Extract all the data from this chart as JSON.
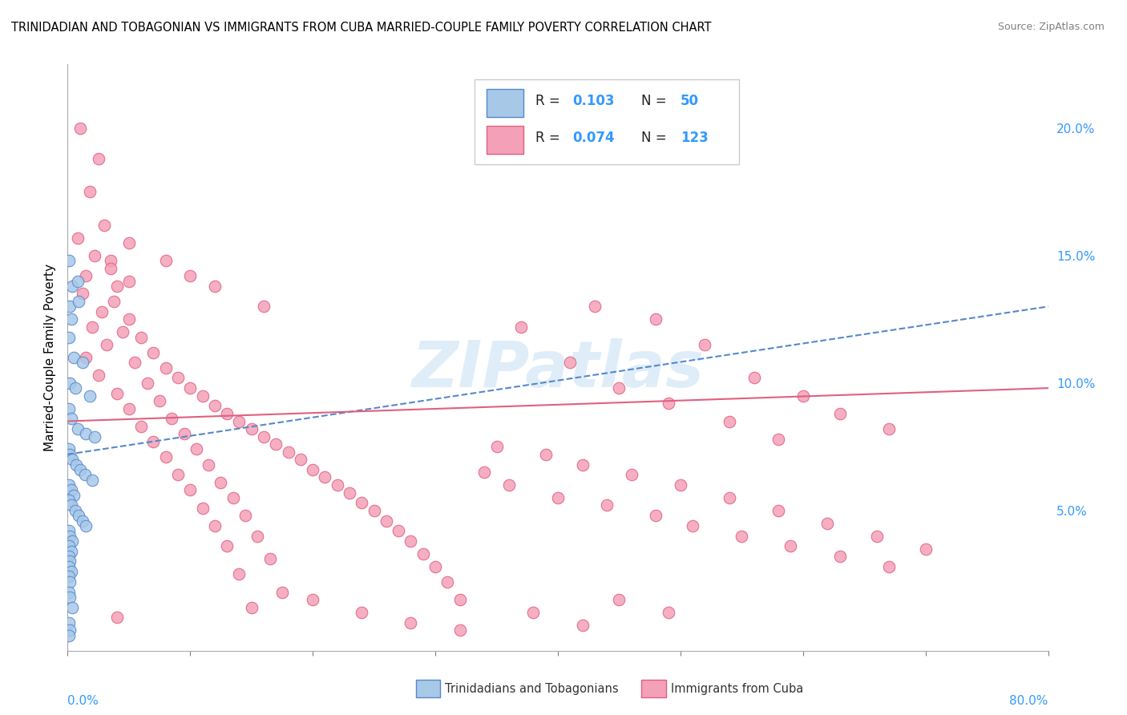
{
  "title": "TRINIDADIAN AND TOBAGONIAN VS IMMIGRANTS FROM CUBA MARRIED-COUPLE FAMILY POVERTY CORRELATION CHART",
  "source": "Source: ZipAtlas.com",
  "ylabel": "Married-Couple Family Poverty",
  "right_yticks": [
    "5.0%",
    "10.0%",
    "15.0%",
    "20.0%"
  ],
  "right_ytick_vals": [
    0.05,
    0.1,
    0.15,
    0.2
  ],
  "watermark": "ZIPatlas",
  "blue_color": "#a8c8e8",
  "pink_color": "#f4a0b8",
  "trend_blue_color": "#5588cc",
  "trend_pink_color": "#e06080",
  "blue_scatter": [
    [
      0.001,
      0.148
    ],
    [
      0.004,
      0.138
    ],
    [
      0.002,
      0.13
    ],
    [
      0.008,
      0.14
    ],
    [
      0.003,
      0.125
    ],
    [
      0.009,
      0.132
    ],
    [
      0.001,
      0.118
    ],
    [
      0.005,
      0.11
    ],
    [
      0.012,
      0.108
    ],
    [
      0.002,
      0.1
    ],
    [
      0.006,
      0.098
    ],
    [
      0.018,
      0.095
    ],
    [
      0.001,
      0.09
    ],
    [
      0.003,
      0.086
    ],
    [
      0.008,
      0.082
    ],
    [
      0.015,
      0.08
    ],
    [
      0.022,
      0.079
    ],
    [
      0.001,
      0.074
    ],
    [
      0.002,
      0.072
    ],
    [
      0.004,
      0.07
    ],
    [
      0.007,
      0.068
    ],
    [
      0.01,
      0.066
    ],
    [
      0.014,
      0.064
    ],
    [
      0.02,
      0.062
    ],
    [
      0.001,
      0.06
    ],
    [
      0.003,
      0.058
    ],
    [
      0.005,
      0.056
    ],
    [
      0.001,
      0.054
    ],
    [
      0.003,
      0.052
    ],
    [
      0.006,
      0.05
    ],
    [
      0.009,
      0.048
    ],
    [
      0.012,
      0.046
    ],
    [
      0.015,
      0.044
    ],
    [
      0.001,
      0.042
    ],
    [
      0.002,
      0.04
    ],
    [
      0.004,
      0.038
    ],
    [
      0.001,
      0.036
    ],
    [
      0.003,
      0.034
    ],
    [
      0.001,
      0.032
    ],
    [
      0.002,
      0.03
    ],
    [
      0.001,
      0.028
    ],
    [
      0.003,
      0.026
    ],
    [
      0.001,
      0.024
    ],
    [
      0.002,
      0.022
    ],
    [
      0.001,
      0.018
    ],
    [
      0.002,
      0.016
    ],
    [
      0.004,
      0.012
    ],
    [
      0.001,
      0.006
    ],
    [
      0.002,
      0.003
    ],
    [
      0.001,
      0.001
    ]
  ],
  "pink_scatter": [
    [
      0.01,
      0.2
    ],
    [
      0.025,
      0.188
    ],
    [
      0.018,
      0.175
    ],
    [
      0.03,
      0.162
    ],
    [
      0.008,
      0.157
    ],
    [
      0.022,
      0.15
    ],
    [
      0.035,
      0.148
    ],
    [
      0.015,
      0.142
    ],
    [
      0.04,
      0.138
    ],
    [
      0.012,
      0.135
    ],
    [
      0.038,
      0.132
    ],
    [
      0.028,
      0.128
    ],
    [
      0.05,
      0.125
    ],
    [
      0.02,
      0.122
    ],
    [
      0.045,
      0.12
    ],
    [
      0.06,
      0.118
    ],
    [
      0.032,
      0.115
    ],
    [
      0.07,
      0.112
    ],
    [
      0.015,
      0.11
    ],
    [
      0.055,
      0.108
    ],
    [
      0.08,
      0.106
    ],
    [
      0.025,
      0.103
    ],
    [
      0.09,
      0.102
    ],
    [
      0.065,
      0.1
    ],
    [
      0.1,
      0.098
    ],
    [
      0.04,
      0.096
    ],
    [
      0.11,
      0.095
    ],
    [
      0.075,
      0.093
    ],
    [
      0.12,
      0.091
    ],
    [
      0.05,
      0.09
    ],
    [
      0.13,
      0.088
    ],
    [
      0.085,
      0.086
    ],
    [
      0.14,
      0.085
    ],
    [
      0.06,
      0.083
    ],
    [
      0.15,
      0.082
    ],
    [
      0.095,
      0.08
    ],
    [
      0.16,
      0.079
    ],
    [
      0.07,
      0.077
    ],
    [
      0.17,
      0.076
    ],
    [
      0.105,
      0.074
    ],
    [
      0.18,
      0.073
    ],
    [
      0.08,
      0.071
    ],
    [
      0.19,
      0.07
    ],
    [
      0.115,
      0.068
    ],
    [
      0.2,
      0.066
    ],
    [
      0.09,
      0.064
    ],
    [
      0.21,
      0.063
    ],
    [
      0.125,
      0.061
    ],
    [
      0.22,
      0.06
    ],
    [
      0.1,
      0.058
    ],
    [
      0.23,
      0.057
    ],
    [
      0.135,
      0.055
    ],
    [
      0.24,
      0.053
    ],
    [
      0.11,
      0.051
    ],
    [
      0.25,
      0.05
    ],
    [
      0.145,
      0.048
    ],
    [
      0.26,
      0.046
    ],
    [
      0.12,
      0.044
    ],
    [
      0.27,
      0.042
    ],
    [
      0.155,
      0.04
    ],
    [
      0.28,
      0.038
    ],
    [
      0.13,
      0.036
    ],
    [
      0.29,
      0.033
    ],
    [
      0.165,
      0.031
    ],
    [
      0.3,
      0.028
    ],
    [
      0.14,
      0.025
    ],
    [
      0.31,
      0.022
    ],
    [
      0.175,
      0.018
    ],
    [
      0.32,
      0.015
    ],
    [
      0.15,
      0.012
    ],
    [
      0.38,
      0.01
    ],
    [
      0.04,
      0.008
    ],
    [
      0.43,
      0.13
    ],
    [
      0.48,
      0.125
    ],
    [
      0.37,
      0.122
    ],
    [
      0.52,
      0.115
    ],
    [
      0.41,
      0.108
    ],
    [
      0.56,
      0.102
    ],
    [
      0.45,
      0.098
    ],
    [
      0.6,
      0.095
    ],
    [
      0.49,
      0.092
    ],
    [
      0.63,
      0.088
    ],
    [
      0.54,
      0.085
    ],
    [
      0.67,
      0.082
    ],
    [
      0.58,
      0.078
    ],
    [
      0.35,
      0.075
    ],
    [
      0.39,
      0.072
    ],
    [
      0.42,
      0.068
    ],
    [
      0.46,
      0.064
    ],
    [
      0.5,
      0.06
    ],
    [
      0.54,
      0.055
    ],
    [
      0.58,
      0.05
    ],
    [
      0.62,
      0.045
    ],
    [
      0.66,
      0.04
    ],
    [
      0.7,
      0.035
    ],
    [
      0.34,
      0.065
    ],
    [
      0.36,
      0.06
    ],
    [
      0.4,
      0.055
    ],
    [
      0.44,
      0.052
    ],
    [
      0.48,
      0.048
    ],
    [
      0.51,
      0.044
    ],
    [
      0.55,
      0.04
    ],
    [
      0.59,
      0.036
    ],
    [
      0.63,
      0.032
    ],
    [
      0.67,
      0.028
    ],
    [
      0.035,
      0.145
    ],
    [
      0.05,
      0.14
    ],
    [
      0.2,
      0.015
    ],
    [
      0.24,
      0.01
    ],
    [
      0.28,
      0.006
    ],
    [
      0.32,
      0.003
    ],
    [
      0.42,
      0.005
    ],
    [
      0.05,
      0.155
    ],
    [
      0.08,
      0.148
    ],
    [
      0.1,
      0.142
    ],
    [
      0.12,
      0.138
    ],
    [
      0.16,
      0.13
    ],
    [
      0.45,
      0.015
    ],
    [
      0.49,
      0.01
    ]
  ],
  "blue_trend": [
    0.0,
    0.8,
    0.072,
    0.13
  ],
  "pink_trend": [
    0.0,
    0.8,
    0.085,
    0.098
  ],
  "xlim": [
    0.0,
    0.8
  ],
  "ylim": [
    -0.005,
    0.225
  ]
}
